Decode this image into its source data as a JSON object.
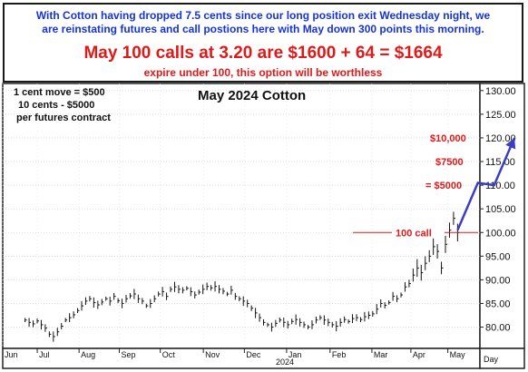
{
  "banner": {
    "line1": "With Cotton having dropped 7.5 cents since our long position exit Wednesday night, we",
    "line2": "are reinstating futures and call postions here with May down 300 points this morning.",
    "line3": "May 100 calls at 3.20 are $1600 + 64 = $1664",
    "line4": "expire under 100, this option will be worthless"
  },
  "notes": {
    "line1": "1 cent move = $500",
    "line2": "10 cents - $5000",
    "line3": "per futures contract"
  },
  "chart_data": {
    "type": "bar",
    "title": "May 2024 Cotton",
    "y_ticks": [
      "130.00",
      "125.00",
      "120.00",
      "115.00",
      "110.00",
      "105.00",
      "100.00",
      "95.00",
      "90.00",
      "85.00",
      "80.00"
    ],
    "ylim": [
      75.5,
      131.5
    ],
    "x_ticks": [
      "Jun",
      "Jul",
      "Aug",
      "Sep",
      "Oct",
      "Nov",
      "Dec",
      "Jan",
      "Feb",
      "Mar",
      "Apr",
      "May"
    ],
    "x_year_label": "2024",
    "x_unit_label": "Day",
    "price_series": [
      81.5,
      81.0,
      80.7,
      81.3,
      80.5,
      79.8,
      78.5,
      78.0,
      79.0,
      80.2,
      81.5,
      82.0,
      82.6,
      83.5,
      84.5,
      85.5,
      86.0,
      85.2,
      84.7,
      85.3,
      86.0,
      85.5,
      86.5,
      85.6,
      85.0,
      86.0,
      86.6,
      87.0,
      86.0,
      85.5,
      84.5,
      85.0,
      86.0,
      87.0,
      87.5,
      86.5,
      88.0,
      88.5,
      88.0,
      87.8,
      88.2,
      87.5,
      86.8,
      87.4,
      88.0,
      88.6,
      88.3,
      88.6,
      88.0,
      87.6,
      87.0,
      87.8,
      86.5,
      86.0,
      85.5,
      85.0,
      84.0,
      83.0,
      82.0,
      81.0,
      80.5,
      80.0,
      80.8,
      81.5,
      81.0,
      80.5,
      81.2,
      81.6,
      81.0,
      80.5,
      80.0,
      80.5,
      81.5,
      82.0,
      81.5,
      81.0,
      80.5,
      80.2,
      81.0,
      81.6,
      81.2,
      81.8,
      82.0,
      81.6,
      82.2,
      82.5,
      82.8,
      83.8,
      85.0,
      84.6,
      85.2,
      86.5,
      86.0,
      86.8,
      88.5,
      89.2,
      91.0,
      92.5,
      91.5,
      93.5,
      95.0,
      97.0,
      96.0,
      92.5,
      97.5,
      100.5,
      103.0,
      100.0
    ],
    "x_first": 5.5,
    "x_last": 112,
    "projection": {
      "points": [
        [
          112,
          100.5
        ],
        [
          117,
          110.5
        ],
        [
          121,
          110.0
        ],
        [
          126,
          120.0
        ]
      ],
      "color": "#3a3fc2"
    },
    "annotations": [
      {
        "text": "100 call",
        "y": 100.0,
        "color": "#e01919"
      },
      {
        "text": "$10,000",
        "y": 120.0,
        "color": "#e01919"
      },
      {
        "text": "$7500",
        "y": 115.0,
        "color": "#e01919"
      },
      {
        "text": "= $5000",
        "y": 110.0,
        "color": "#e01919"
      }
    ]
  }
}
